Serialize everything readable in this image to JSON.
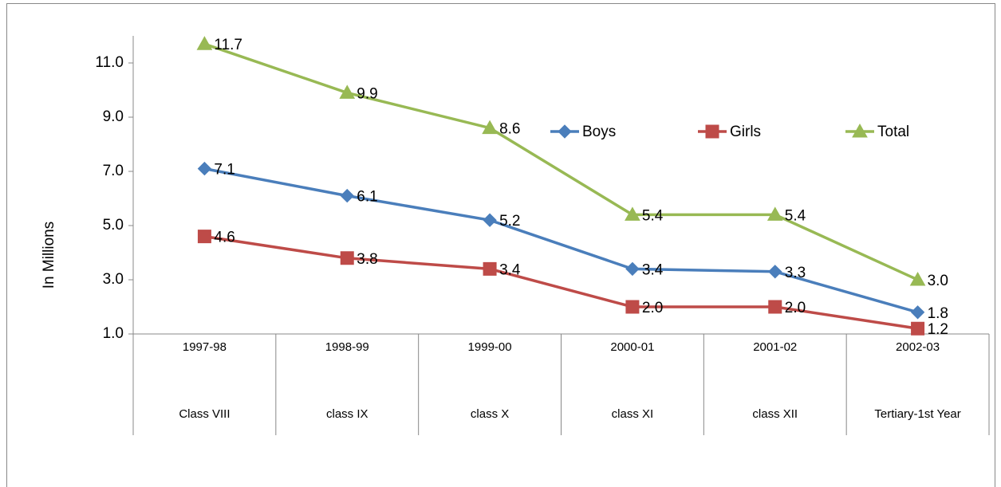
{
  "chart_data": {
    "type": "line",
    "y_label": "In Millions",
    "categories": [
      [
        "1997-98",
        "Class VIII"
      ],
      [
        "1998-99",
        "class IX"
      ],
      [
        "1999-00",
        "class X"
      ],
      [
        "2000-01",
        "class XI"
      ],
      [
        "2001-02",
        "class XII"
      ],
      [
        "2002-03",
        "Tertiary-1st Year"
      ]
    ],
    "series": [
      {
        "name": "Boys",
        "color": "#4a7ebb",
        "marker": "diamond",
        "values": [
          7.1,
          6.1,
          5.2,
          3.4,
          3.3,
          1.8
        ]
      },
      {
        "name": "Girls",
        "color": "#be4b48",
        "marker": "square",
        "values": [
          4.6,
          3.8,
          3.4,
          2,
          2,
          1.2
        ],
        "value_labels": [
          "4.6",
          "3.8",
          "3.4",
          "2.0",
          "2.0",
          "1.2"
        ]
      },
      {
        "name": "Total",
        "color": "#98b954",
        "marker": "triangle",
        "values": [
          11.7,
          9.9,
          8.6,
          5.4,
          5.4,
          3
        ],
        "value_labels": [
          "11.7",
          "9.9",
          "8.6",
          "5.4",
          "5.4",
          "3.0"
        ]
      }
    ],
    "ylim": [
      1,
      12
    ],
    "yticks": [
      {
        "value": 1,
        "label": "1.0"
      },
      {
        "value": 3,
        "label": "3.0"
      },
      {
        "value": 5,
        "label": "5.0"
      },
      {
        "value": 7,
        "label": "7.0"
      },
      {
        "value": 9,
        "label": "9.0"
      },
      {
        "value": 11,
        "label": "11.0"
      }
    ],
    "grid": false,
    "legend": "top"
  }
}
